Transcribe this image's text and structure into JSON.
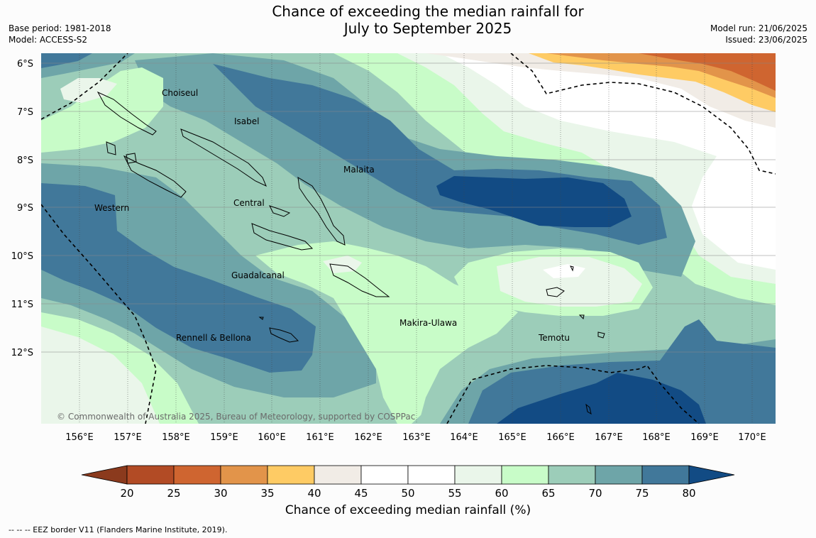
{
  "title_line1": "Chance of exceeding the median rainfall for",
  "title_line2": "July to September 2025",
  "meta_left": {
    "base_period": "Base period: 1981-2018",
    "model": "Model: ACCESS-S2"
  },
  "meta_right": {
    "model_run": "Model run: 21/06/2025",
    "issued": "Issued: 23/06/2025"
  },
  "lat_labels": [
    "6°S",
    "7°S",
    "8°S",
    "9°S",
    "10°S",
    "11°S",
    "12°S"
  ],
  "lon_labels": [
    "156°E",
    "157°E",
    "158°E",
    "159°E",
    "160°E",
    "161°E",
    "162°E",
    "163°E",
    "164°E",
    "165°E",
    "166°E",
    "167°E",
    "168°E",
    "169°E",
    "170°E"
  ],
  "regions": [
    "Choiseul",
    "Isabel",
    "Malaita",
    "Western",
    "Central",
    "Guadalcanal",
    "Makira-Ulawa",
    "Temotu",
    "Rennell & Bellona"
  ],
  "credit": "© Commonwealth of Australia 2025, Bureau of Meteorology, supported by COSPPac",
  "legend": {
    "title": "Chance of exceeding median rainfall (%)",
    "ticks": [
      "20",
      "25",
      "30",
      "35",
      "40",
      "45",
      "50",
      "55",
      "60",
      "65",
      "70",
      "75",
      "80"
    ],
    "colors": [
      "#8b3a1d",
      "#b24b25",
      "#cf6530",
      "#e2944a",
      "#fecb64",
      "#f1ece6",
      "#ffffff",
      "#ffffff",
      "#eaf6ea",
      "#c8fcc8",
      "#9ccdb9",
      "#6ea5a8",
      "#41789a",
      "#124b84"
    ]
  },
  "footer": "--  --  -- EEZ border V11 (Flanders Marine Institute, 2019)."
}
